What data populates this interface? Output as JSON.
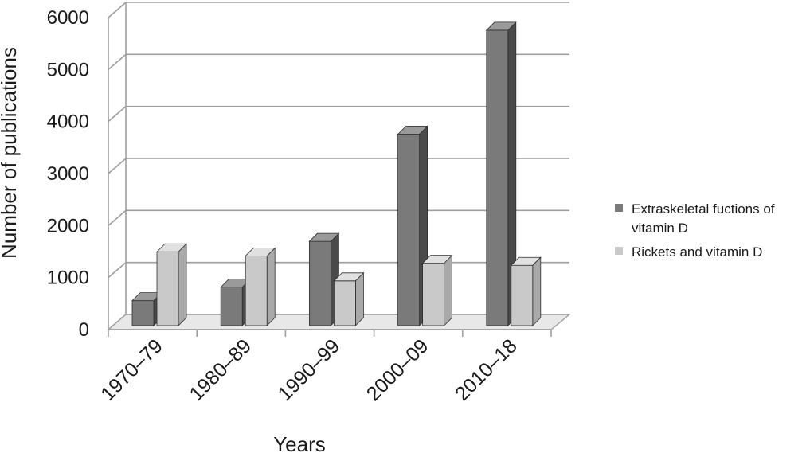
{
  "chart_data": {
    "type": "bar",
    "categories": [
      "1970–79",
      "1980–89",
      "1990–99",
      "2000–09",
      "2010–18"
    ],
    "series": [
      {
        "name": "Extraskeletal fuctions of vitamin D",
        "values": [
          480,
          740,
          1620,
          3680,
          5680
        ]
      },
      {
        "name": "Rickets and vitamin D",
        "values": [
          1420,
          1340,
          860,
          1200,
          1160
        ]
      }
    ],
    "xlabel": "Years",
    "ylabel": "Number of publications",
    "ylim": [
      0,
      6000
    ],
    "yticks": [
      "0",
      "1000",
      "2000",
      "3000",
      "4000",
      "5000",
      "6000"
    ],
    "grid": true,
    "legend_position": "right",
    "legend": {
      "series1_lines": [
        "Extraskeletal fuctions of",
        "vitamin D"
      ],
      "series2_lines": [
        "Rickets and vitamin D"
      ]
    },
    "colors": {
      "series1": {
        "front": "#7a7a7a",
        "top": "#9a9a9a",
        "side": "#4a4a4a"
      },
      "series2": {
        "front": "#c9c9c9",
        "top": "#e0e0e0",
        "side": "#a9a9a9"
      },
      "grid": "#9e9e9e",
      "floor": "#e8e8e8"
    }
  }
}
